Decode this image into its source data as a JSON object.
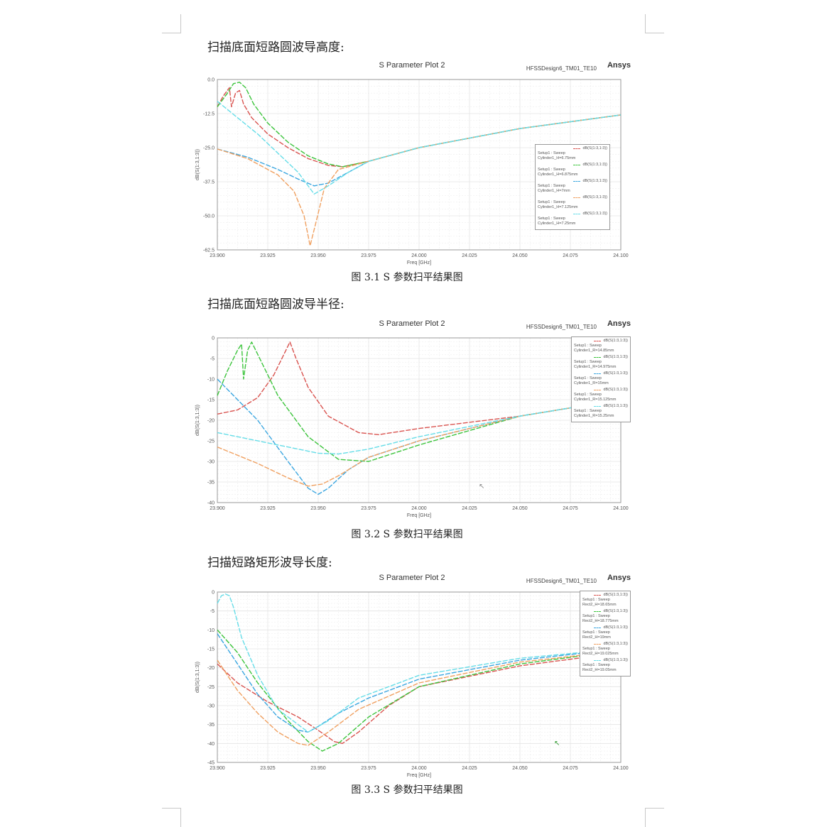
{
  "page": {
    "sections": [
      {
        "heading": "扫描底面短路圆波导高度:",
        "caption": "图 3.1 S 参数扫平结果图"
      },
      {
        "heading": "扫描底面短路圆波导半径:",
        "caption": "图 3.2 S 参数扫平结果图"
      },
      {
        "heading": "扫描短路矩形波导长度:",
        "caption": "图 3.3 S 参数扫平结果图"
      }
    ]
  },
  "colors": {
    "red": "#d9534f",
    "green": "#3cc43c",
    "blue": "#3aa6e0",
    "orange": "#f0a060",
    "cyan": "#66dde8",
    "grid": "#e4e4e4",
    "axis": "#999999"
  },
  "chart_data": [
    {
      "type": "line",
      "title": "S Parameter Plot 2",
      "design_label": "HFSSDesign6_TM01_TE10",
      "brand": "Ansys",
      "xlabel": "Freq [GHz]",
      "ylabel": "dB(S(1:3,1:3))",
      "xlim": [
        23.9,
        24.1
      ],
      "ylim": [
        -62.5,
        0
      ],
      "x_ticks": [
        "23.900",
        "23.925",
        "23.950",
        "23.975",
        "24.000",
        "24.025",
        "24.050",
        "24.075",
        "24.100"
      ],
      "y_ticks": [
        "0.0",
        "-12.5",
        "-25.0",
        "-37.5",
        "-50.0",
        "-62.5"
      ],
      "y_tick_values": [
        0,
        -12.5,
        -25,
        -37.5,
        -50,
        -62.5
      ],
      "grid": true,
      "legend_position": "right",
      "series": [
        {
          "legend": "dB(S(1:3,1:3))",
          "setup": "Setup1 : Sweep",
          "param": "Cylinder1_H=6.75mm",
          "color": "red",
          "x": [
            23.9,
            23.903,
            23.906,
            23.907,
            23.909,
            23.911,
            23.913,
            23.917,
            23.925,
            23.935,
            23.945,
            23.955,
            23.962,
            23.975,
            24.0,
            24.05,
            24.1
          ],
          "y": [
            -10,
            -6,
            -3,
            -10,
            -5,
            -4,
            -9,
            -14,
            -20,
            -25,
            -29,
            -31.5,
            -32,
            -30,
            -25,
            -18,
            -13
          ]
        },
        {
          "legend": "dB(S(1:3,1:3))",
          "setup": "Setup1 : Sweep",
          "param": "Cylinder1_H=6.875mm",
          "color": "green",
          "x": [
            23.9,
            23.905,
            23.908,
            23.911,
            23.914,
            23.918,
            23.925,
            23.935,
            23.945,
            23.955,
            23.962,
            23.975,
            24.0,
            24.05,
            24.1
          ],
          "y": [
            -10,
            -5,
            -1.5,
            -1,
            -3,
            -9,
            -16,
            -23,
            -28,
            -31,
            -32,
            -30,
            -25,
            -18,
            -13
          ]
        },
        {
          "legend": "dB(S(1:3,1:3))",
          "setup": "Setup1 : Sweep",
          "param": "Cylinder1_H=7mm",
          "color": "blue",
          "x": [
            23.9,
            23.915,
            23.93,
            23.94,
            23.948,
            23.955,
            23.965,
            23.975,
            24.0,
            24.05,
            24.1
          ],
          "y": [
            -25.5,
            -28.5,
            -33,
            -36.5,
            -39,
            -38,
            -34,
            -30,
            -25,
            -18,
            -13
          ]
        },
        {
          "legend": "dB(S(1:3,1:3))",
          "setup": "Setup1 : Sweep",
          "param": "Cylinder1_H=7.125mm",
          "color": "orange",
          "x": [
            23.9,
            23.915,
            23.93,
            23.938,
            23.943,
            23.946,
            23.949,
            23.953,
            23.96,
            23.975,
            24.0,
            24.05,
            24.1
          ],
          "y": [
            -25.5,
            -29,
            -35,
            -41,
            -50,
            -61,
            -52,
            -40,
            -33,
            -30,
            -25,
            -18,
            -13
          ]
        },
        {
          "legend": "dB(S(1:3,1:3))",
          "setup": "Setup1 : Sweep",
          "param": "Cylinder1_H=7.25mm",
          "color": "cyan",
          "x": [
            23.9,
            23.91,
            23.92,
            23.93,
            23.94,
            23.948,
            23.955,
            23.965,
            23.975,
            24.0,
            24.05,
            24.1
          ],
          "y": [
            -8,
            -14,
            -20,
            -27,
            -34,
            -42,
            -39,
            -34,
            -30,
            -25,
            -18,
            -13
          ]
        }
      ]
    },
    {
      "type": "line",
      "title": "S Parameter Plot 2",
      "design_label": "HFSSDesign6_TM01_TE10",
      "brand": "Ansys",
      "xlabel": "Freq [GHz]",
      "ylabel": "dB(S(1:3,1:3))",
      "xlim": [
        23.9,
        24.1
      ],
      "ylim": [
        -40,
        0
      ],
      "x_ticks": [
        "23.900",
        "23.925",
        "23.950",
        "23.975",
        "24.000",
        "24.025",
        "24.050",
        "24.075",
        "24.100"
      ],
      "y_ticks": [
        "0",
        "-5",
        "-10",
        "-15",
        "-20",
        "-25",
        "-30",
        "-35",
        "-40"
      ],
      "y_tick_values": [
        0,
        -5,
        -10,
        -15,
        -20,
        -25,
        -30,
        -35,
        -40
      ],
      "grid": true,
      "legend_position": "top-right",
      "series": [
        {
          "legend": "dB(S(1:3,1:3))",
          "setup": "Setup1 : Sweep",
          "param": "Cylinder1_R=14.85mm",
          "color": "red",
          "x": [
            23.9,
            23.91,
            23.92,
            23.928,
            23.933,
            23.936,
            23.939,
            23.945,
            23.955,
            23.97,
            23.98,
            24.0,
            24.05,
            24.1
          ],
          "y": [
            -18.5,
            -17.5,
            -14.5,
            -9,
            -4,
            -1,
            -5,
            -12,
            -19,
            -23,
            -23.5,
            -22,
            -19,
            -15
          ]
        },
        {
          "legend": "dB(S(1:3,1:3))",
          "setup": "Setup1 : Sweep",
          "param": "Cylinder1_R=14.975mm",
          "color": "green",
          "x": [
            23.9,
            23.905,
            23.91,
            23.912,
            23.913,
            23.915,
            23.917,
            23.922,
            23.93,
            23.945,
            23.96,
            23.975,
            24.0,
            24.05,
            24.1
          ],
          "y": [
            -14,
            -8,
            -3,
            -1.5,
            -10,
            -3,
            -1,
            -6,
            -14,
            -24,
            -29.5,
            -30,
            -26,
            -19,
            -15
          ]
        },
        {
          "legend": "dB(S(1:3,1:3))",
          "setup": "Setup1 : Sweep",
          "param": "Cylinder1_R=15mm",
          "color": "blue",
          "x": [
            23.9,
            23.92,
            23.935,
            23.945,
            23.95,
            23.955,
            23.965,
            23.975,
            24.0,
            24.05,
            24.1
          ],
          "y": [
            -10,
            -20,
            -30,
            -36.5,
            -38,
            -36.5,
            -32,
            -29,
            -25,
            -19,
            -15
          ]
        },
        {
          "legend": "dB(S(1:3,1:3))",
          "setup": "Setup1 : Sweep",
          "param": "Cylinder1_R=15.125mm",
          "color": "orange",
          "x": [
            23.9,
            23.92,
            23.935,
            23.945,
            23.952,
            23.96,
            23.975,
            24.0,
            24.05,
            24.1
          ],
          "y": [
            -26.5,
            -30.5,
            -34,
            -36,
            -35.5,
            -33.5,
            -29,
            -25,
            -19,
            -15
          ]
        },
        {
          "legend": "dB(S(1:3,1:3))",
          "setup": "Setup1 : Sweep",
          "param": "Cylinder1_R=15.25mm",
          "color": "cyan",
          "x": [
            23.9,
            23.925,
            23.95,
            23.96,
            23.975,
            24.0,
            24.05,
            24.1
          ],
          "y": [
            -23,
            -25.5,
            -28,
            -28.2,
            -27,
            -24,
            -19,
            -15
          ]
        }
      ]
    },
    {
      "type": "line",
      "title": "S Parameter Plot 2",
      "design_label": "HFSSDesign6_TM01_TE10",
      "brand": "Ansys",
      "xlabel": "Freq [GHz]",
      "ylabel": "dB(S(1:3,1:3))",
      "xlim": [
        23.9,
        24.1
      ],
      "ylim": [
        -45,
        0
      ],
      "x_ticks": [
        "23.900",
        "23.925",
        "23.950",
        "23.975",
        "24.000",
        "24.025",
        "24.050",
        "24.075",
        "24.100"
      ],
      "y_ticks": [
        "0",
        "-5",
        "-10",
        "-15",
        "-20",
        "-25",
        "-30",
        "-35",
        "-40",
        "-45"
      ],
      "y_tick_values": [
        0,
        -5,
        -10,
        -15,
        -20,
        -25,
        -30,
        -35,
        -40,
        -45
      ],
      "grid": true,
      "legend_position": "top-right",
      "series": [
        {
          "legend": "dB(S(1:3,1:3))",
          "setup": "Setup1 : Sweep",
          "param": "Rect2_H=18.65mm",
          "color": "red",
          "x": [
            23.9,
            23.91,
            23.925,
            23.94,
            23.95,
            23.958,
            23.962,
            23.97,
            23.985,
            24.0,
            24.05,
            24.1
          ],
          "y": [
            -19,
            -24,
            -29,
            -33,
            -36.5,
            -39.5,
            -40,
            -37,
            -30,
            -25,
            -19.5,
            -16
          ]
        },
        {
          "legend": "dB(S(1:3,1:3))",
          "setup": "Setup1 : Sweep",
          "param": "Rect2_H=18.775mm",
          "color": "green",
          "x": [
            23.9,
            23.91,
            23.92,
            23.935,
            23.945,
            23.952,
            23.96,
            23.975,
            24.0,
            24.05,
            24.1
          ],
          "y": [
            -10,
            -16,
            -24,
            -34,
            -39.5,
            -42,
            -40,
            -33,
            -25,
            -19,
            -15.5
          ]
        },
        {
          "legend": "dB(S(1:3,1:3))",
          "setup": "Setup1 : Sweep",
          "param": "Rect2_H=19mm",
          "color": "blue",
          "x": [
            23.9,
            23.91,
            23.92,
            23.93,
            23.94,
            23.945,
            23.95,
            23.96,
            23.975,
            24.0,
            24.05,
            24.1
          ],
          "y": [
            -11,
            -19,
            -27,
            -33,
            -36.5,
            -37,
            -35.5,
            -32,
            -28,
            -23,
            -18,
            -15
          ]
        },
        {
          "legend": "dB(S(1:3,1:3))",
          "setup": "Setup1 : Sweep",
          "param": "Rect2_H=19.025mm",
          "color": "orange",
          "x": [
            23.9,
            23.91,
            23.92,
            23.93,
            23.94,
            23.945,
            23.955,
            23.97,
            24.0,
            24.05,
            24.1
          ],
          "y": [
            -18,
            -26,
            -32,
            -37,
            -40,
            -40.5,
            -37,
            -31,
            -24,
            -18.5,
            -15.5
          ]
        },
        {
          "legend": "dB(S(1:3,1:3))",
          "setup": "Setup1 : Sweep",
          "param": "Rect2_H=19.05mm",
          "color": "cyan",
          "x": [
            23.9,
            23.902,
            23.904,
            23.906,
            23.908,
            23.912,
            23.92,
            23.93,
            23.945,
            23.955,
            23.97,
            24.0,
            24.05,
            24.1
          ],
          "y": [
            -3,
            -1,
            -0.5,
            -1,
            -4,
            -12,
            -22,
            -31,
            -37,
            -34,
            -28,
            -22,
            -17.5,
            -15
          ]
        }
      ]
    }
  ]
}
